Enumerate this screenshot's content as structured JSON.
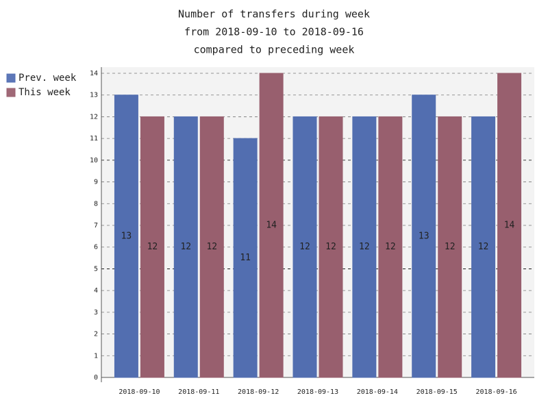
{
  "chart_data": {
    "type": "bar",
    "title": [
      "Number of transfers during week",
      "from 2018-09-10 to 2018-09-16",
      "compared to preceding week"
    ],
    "categories": [
      "2018-09-10",
      "2018-09-11",
      "2018-09-12",
      "2018-09-13",
      "2018-09-14",
      "2018-09-15",
      "2018-09-16"
    ],
    "series": [
      {
        "name": "Prev. week",
        "color": "#5470b4",
        "values": [
          13,
          12,
          11,
          12,
          12,
          13,
          12
        ]
      },
      {
        "name": "This week",
        "color": "#9b6170",
        "values": [
          12,
          12,
          14,
          12,
          12,
          12,
          14
        ]
      }
    ],
    "ylim": [
      0,
      14
    ],
    "yticks": [
      0,
      1,
      2,
      3,
      4,
      5,
      6,
      7,
      8,
      9,
      10,
      11,
      12,
      13,
      14
    ],
    "grid": true,
    "legend": "left"
  }
}
